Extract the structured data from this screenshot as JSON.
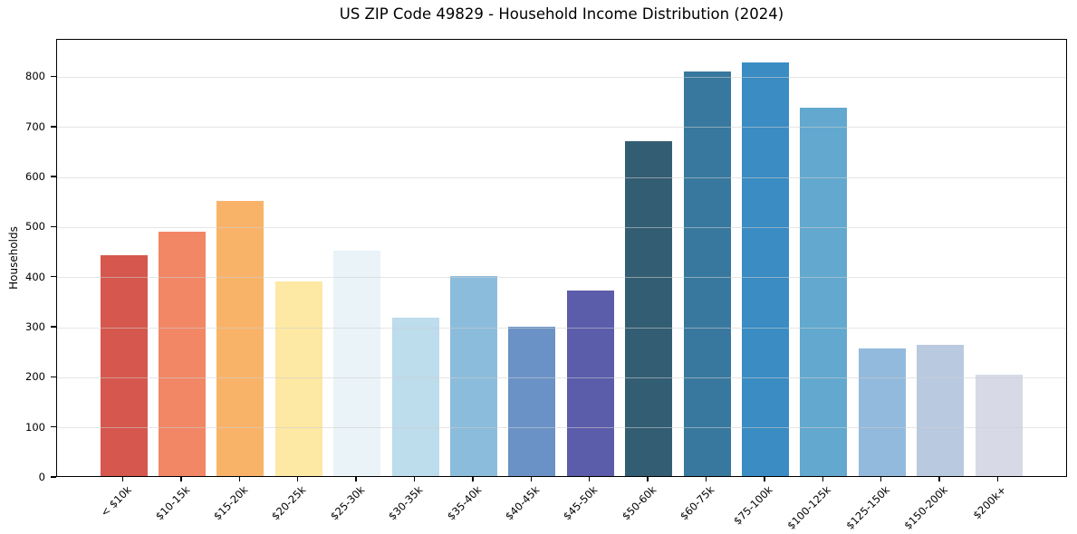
{
  "chart_data": {
    "type": "bar",
    "title": "US ZIP Code 49829 - Household Income Distribution (2024)",
    "xlabel": "",
    "ylabel": "Households",
    "categories": [
      "< $10k",
      "$10-15k",
      "$15-20k",
      "$20-25k",
      "$25-30k",
      "$30-35k",
      "$35-40k",
      "$40-45k",
      "$45-50k",
      "$50-60k",
      "$60-75k",
      "$75-100k",
      "$100-125k",
      "$125-150k",
      "$150-200k",
      "$200k+"
    ],
    "values": [
      442,
      489,
      550,
      388,
      450,
      317,
      400,
      298,
      370,
      669,
      808,
      827,
      735,
      255,
      263,
      203
    ],
    "bar_colors": [
      "#d6574d",
      "#f28766",
      "#f9b369",
      "#fde8a4",
      "#e9f3f8",
      "#bddcec",
      "#8cbcdc",
      "#6a92c6",
      "#5b5caa",
      "#335d73",
      "#38789e",
      "#3a8cc3",
      "#63a8ce",
      "#92badd",
      "#b9c9e0",
      "#d7d9e7"
    ],
    "yticks": [
      0,
      100,
      200,
      300,
      400,
      500,
      600,
      700,
      800
    ],
    "ylim": [
      0,
      875
    ],
    "grid": "y",
    "legend": null,
    "axis_color": "#000000"
  }
}
